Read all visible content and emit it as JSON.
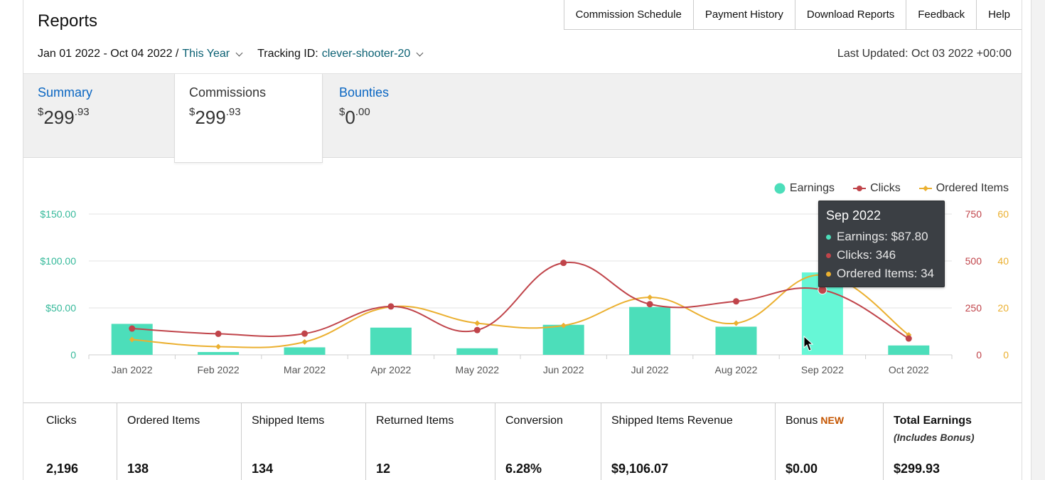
{
  "header": {
    "title": "Reports",
    "nav": [
      "Commission Schedule",
      "Payment History",
      "Download Reports",
      "Feedback",
      "Help"
    ],
    "date_range": "Jan 01 2022 - Oct 04 2022 /",
    "period_link": "This Year",
    "tracking_label": "Tracking ID:",
    "tracking_id": "clever-shooter-20",
    "last_updated": "Last Updated: Oct 03 2022 +00:00"
  },
  "tabs": [
    {
      "name": "Summary",
      "amount_whole": "299",
      "amount_cents": ".93",
      "currency": "$"
    },
    {
      "name": "Commissions",
      "amount_whole": "299",
      "amount_cents": ".93",
      "currency": "$"
    },
    {
      "name": "Bounties",
      "amount_whole": "0",
      "amount_cents": ".00",
      "currency": "$"
    }
  ],
  "legend": {
    "earnings": "Earnings",
    "clicks": "Clicks",
    "ordered": "Ordered Items"
  },
  "tooltip": {
    "title": "Sep 2022",
    "earnings": "Earnings: $87.80",
    "clicks": "Clicks: 346",
    "ordered": "Ordered Items: 34"
  },
  "colors": {
    "earnings": "#4cdeba",
    "earnings_highlight": "#66f7d6",
    "clicks": "#c0444a",
    "ordered": "#ebb030",
    "left_axis": "#35b99a"
  },
  "chart_data": {
    "type": "bar",
    "categories": [
      "Jan 2022",
      "Feb 2022",
      "Mar 2022",
      "Apr 2022",
      "May 2022",
      "Jun 2022",
      "Jul 2022",
      "Aug 2022",
      "Sep 2022",
      "Oct 2022"
    ],
    "series": [
      {
        "name": "Earnings",
        "type": "bar",
        "axis": "left",
        "values": [
          33,
          3,
          8,
          29,
          7,
          32,
          51,
          30,
          87.8,
          10
        ]
      },
      {
        "name": "Clicks",
        "type": "line",
        "axis": "right1",
        "values": [
          140,
          112,
          113,
          258,
          132,
          490,
          270,
          285,
          346,
          87
        ]
      },
      {
        "name": "Ordered Items",
        "type": "line",
        "axis": "right2",
        "values": [
          6.5,
          3.5,
          5.5,
          20.5,
          13.5,
          12.5,
          24.5,
          13.5,
          34,
          8.5
        ]
      }
    ],
    "left_ticks": [
      "$150.00",
      "$100.00",
      "$50.00",
      "0"
    ],
    "left_range": [
      0,
      150
    ],
    "right1_ticks": [
      "750",
      "500",
      "250",
      "0"
    ],
    "right1_range": [
      0,
      750
    ],
    "right2_ticks": [
      "60",
      "40",
      "20",
      "0"
    ],
    "right2_range": [
      0,
      60
    ],
    "highlight_index": 8,
    "legend_position": "top-right",
    "grid": true
  },
  "stats": [
    {
      "label": "Clicks",
      "value": "2,196"
    },
    {
      "label": "Ordered Items",
      "value": "138"
    },
    {
      "label": "Shipped Items",
      "value": "134"
    },
    {
      "label": "Returned Items",
      "value": "12"
    },
    {
      "label": "Conversion",
      "value": "6.28%"
    },
    {
      "label": "Shipped Items Revenue",
      "value": "$9,106.07"
    },
    {
      "label": "Bonus",
      "badge": "NEW",
      "value": "$0.00"
    },
    {
      "label": "Total Earnings",
      "sublabel": "(Includes Bonus)",
      "value": "$299.93"
    }
  ]
}
